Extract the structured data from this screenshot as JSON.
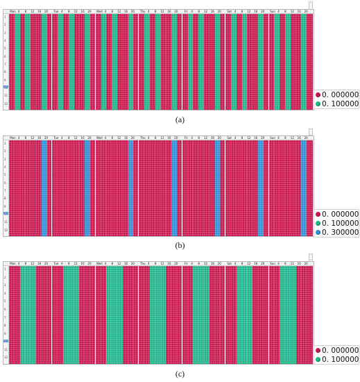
{
  "colors": {
    "red": "#c8174e",
    "green": "#1fb38a",
    "blue": "#2f8fd6",
    "divider": "#ffffff"
  },
  "day_header": [
    "Mon",
    "Tue",
    "Wed",
    "Thu",
    "Fri",
    "Sat",
    "Sun"
  ],
  "hour_labels": [
    "4",
    "8",
    "12",
    "16",
    "20"
  ],
  "row_labels": [
    "1",
    "2",
    "3",
    "4",
    "5",
    "6",
    "7",
    "8",
    "9",
    "10",
    "11",
    "12"
  ],
  "panels": [
    {
      "caption": "(a)",
      "legend": [
        {
          "value": "0. 000000",
          "color": "red"
        },
        {
          "value": "0. 100000",
          "color": "green"
        }
      ],
      "day_pattern": [
        "red",
        "green",
        "red",
        "green",
        "red",
        "red",
        "green",
        "red"
      ]
    },
    {
      "caption": "(b)",
      "legend": [
        {
          "value": "0. 000000",
          "color": "red"
        },
        {
          "value": "0. 100000",
          "color": "green"
        },
        {
          "value": "0. 300000",
          "color": "blue"
        }
      ],
      "day_pattern": [
        "red",
        "red",
        "red",
        "red",
        "red",
        "red",
        "blue",
        "red"
      ]
    },
    {
      "caption": "(c)",
      "legend": [
        {
          "value": "0. 000000",
          "color": "red"
        },
        {
          "value": "0. 100000",
          "color": "green"
        }
      ],
      "day_pattern": [
        "red",
        "red",
        "green",
        "green",
        "green",
        "red",
        "red",
        "red"
      ]
    }
  ]
}
